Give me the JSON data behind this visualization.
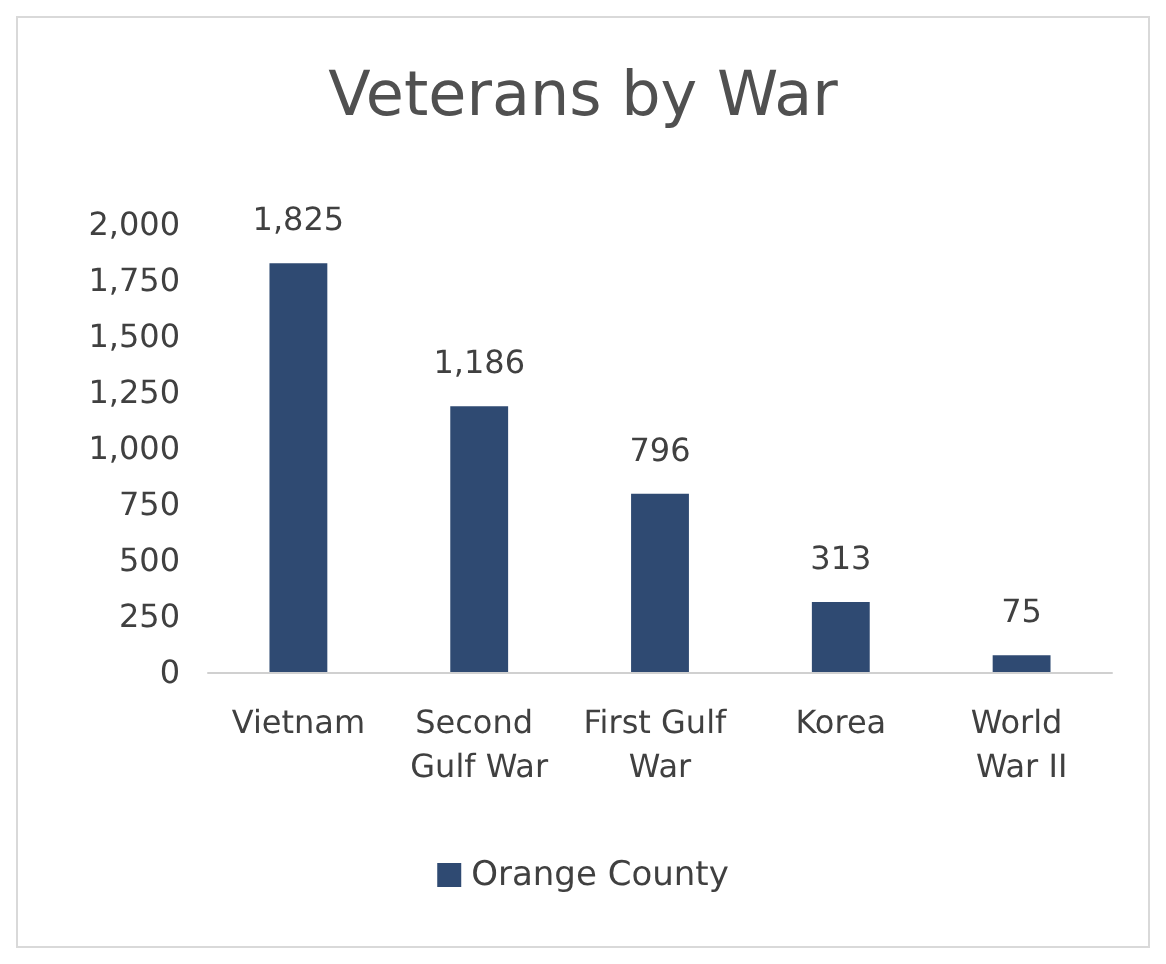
{
  "chart_data": {
    "type": "bar",
    "title": "Veterans by War",
    "categories": [
      "Vietnam",
      "Second Gulf War",
      "First Gulf War",
      "Korea",
      "World War II"
    ],
    "series": [
      {
        "name": "Orange County",
        "color": "#2f4a72",
        "values": [
          1825,
          1186,
          796,
          313,
          75
        ],
        "value_labels": [
          "1,825",
          "1,186",
          "796",
          "313",
          "75"
        ]
      }
    ],
    "ylim": [
      0,
      2000
    ],
    "yticks": [
      0,
      250,
      500,
      750,
      {
        "value": 1000,
        "label": "1,000"
      },
      {
        "value": 1250,
        "label": "1,250"
      },
      {
        "value": 1500,
        "label": "1,500"
      },
      {
        "value": 1750,
        "label": "1,750"
      },
      {
        "value": 2000,
        "label": "2,000"
      }
    ],
    "grid": false,
    "legend": "bottom"
  }
}
